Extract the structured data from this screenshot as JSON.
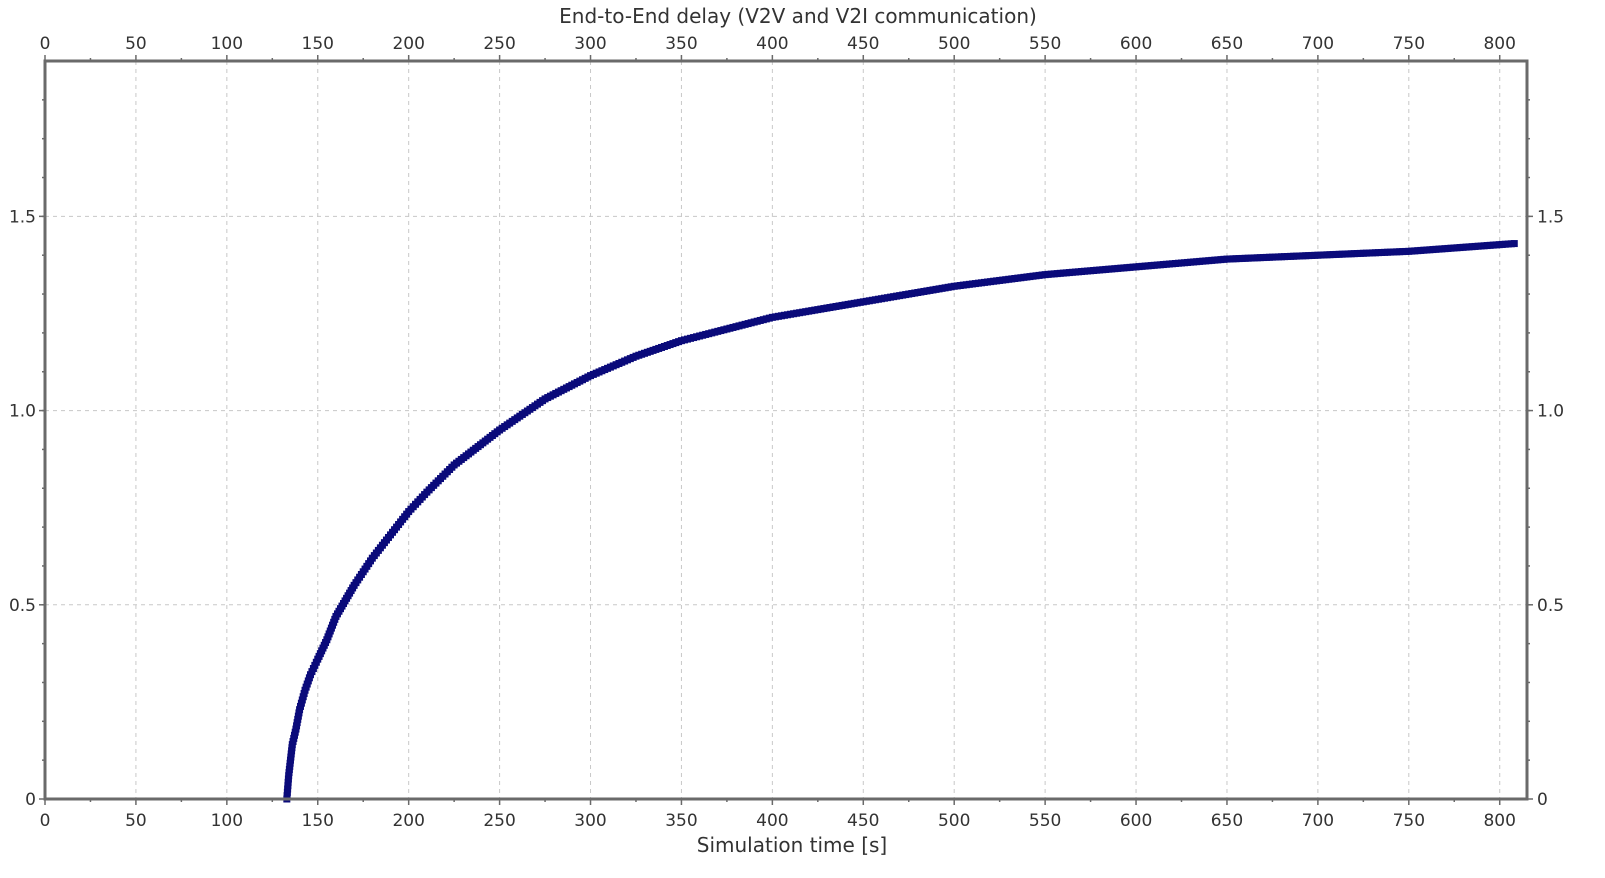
{
  "chart_data": {
    "type": "scatter",
    "title": "End-to-End delay (V2V and V2I communication)",
    "xlabel": "Simulation time [s]",
    "ylabel": "",
    "xlim": [
      0,
      815
    ],
    "ylim": [
      0,
      1.9
    ],
    "x_ticks": [
      0,
      50,
      100,
      150,
      200,
      250,
      300,
      350,
      400,
      450,
      500,
      550,
      600,
      650,
      700,
      750,
      800
    ],
    "x_tick_labels": [
      "0",
      "50",
      "100",
      "150",
      "200",
      "250",
      "300",
      "350",
      "400",
      "450",
      "500",
      "550",
      "600",
      "650",
      "700",
      "750",
      "800"
    ],
    "y_ticks": [
      0,
      0.5,
      1.0,
      1.5
    ],
    "y_tick_labels": [
      "0",
      "0.5",
      "1.0",
      "1.5"
    ],
    "grid": true,
    "marker_color": "#0a0a7a",
    "series": [
      {
        "x": [
          133,
          134,
          135,
          136,
          138,
          140,
          143,
          146,
          150,
          155,
          160,
          170,
          180,
          190,
          200,
          210,
          225,
          250,
          275,
          300,
          325,
          350,
          375,
          400,
          450,
          500,
          550,
          600,
          650,
          700,
          750,
          808
        ],
        "y": [
          0.0,
          0.06,
          0.1,
          0.14,
          0.18,
          0.23,
          0.28,
          0.32,
          0.36,
          0.41,
          0.47,
          0.55,
          0.62,
          0.68,
          0.74,
          0.79,
          0.86,
          0.95,
          1.03,
          1.09,
          1.14,
          1.18,
          1.21,
          1.24,
          1.28,
          1.32,
          1.35,
          1.37,
          1.39,
          1.4,
          1.41,
          1.43
        ]
      }
    ]
  }
}
